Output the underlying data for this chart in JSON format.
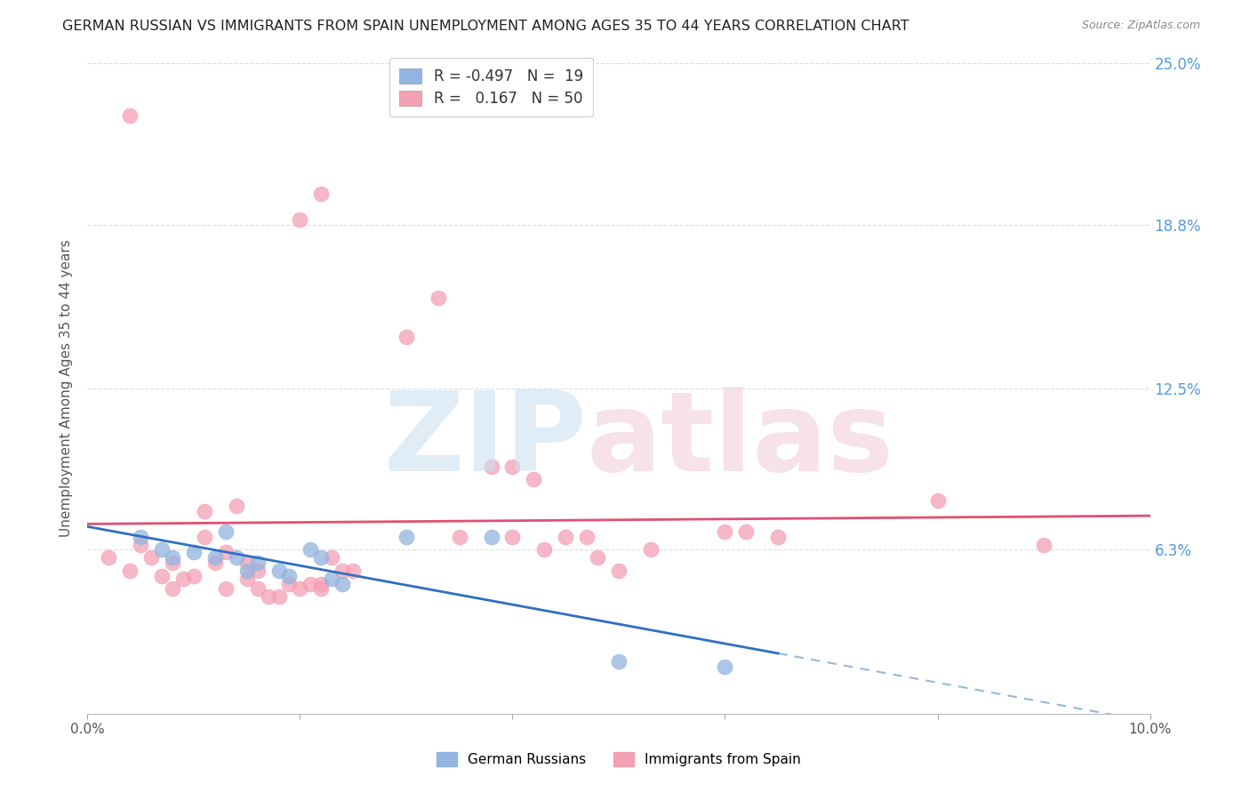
{
  "title": "GERMAN RUSSIAN VS IMMIGRANTS FROM SPAIN UNEMPLOYMENT AMONG AGES 35 TO 44 YEARS CORRELATION CHART",
  "source": "Source: ZipAtlas.com",
  "ylabel": "Unemployment Among Ages 35 to 44 years",
  "xlim": [
    0,
    0.1
  ],
  "ylim": [
    0,
    0.25
  ],
  "yticks": [
    0.063,
    0.125,
    0.188,
    0.25
  ],
  "ytick_labels": [
    "6.3%",
    "12.5%",
    "18.8%",
    "25.0%"
  ],
  "blue_color": "#92b4e0",
  "pink_color": "#f4a0b5",
  "blue_line_color": "#3070c0",
  "pink_line_color": "#e05070",
  "blue_scatter": [
    [
      0.005,
      0.068
    ],
    [
      0.007,
      0.063
    ],
    [
      0.008,
      0.06
    ],
    [
      0.01,
      0.062
    ],
    [
      0.012,
      0.06
    ],
    [
      0.013,
      0.07
    ],
    [
      0.014,
      0.06
    ],
    [
      0.015,
      0.055
    ],
    [
      0.016,
      0.058
    ],
    [
      0.018,
      0.055
    ],
    [
      0.019,
      0.053
    ],
    [
      0.021,
      0.063
    ],
    [
      0.022,
      0.06
    ],
    [
      0.023,
      0.052
    ],
    [
      0.024,
      0.05
    ],
    [
      0.03,
      0.068
    ],
    [
      0.038,
      0.068
    ],
    [
      0.05,
      0.02
    ],
    [
      0.06,
      0.018
    ]
  ],
  "pink_scatter": [
    [
      0.002,
      0.06
    ],
    [
      0.004,
      0.055
    ],
    [
      0.005,
      0.065
    ],
    [
      0.006,
      0.06
    ],
    [
      0.007,
      0.053
    ],
    [
      0.008,
      0.048
    ],
    [
      0.008,
      0.058
    ],
    [
      0.009,
      0.052
    ],
    [
      0.01,
      0.053
    ],
    [
      0.011,
      0.068
    ],
    [
      0.011,
      0.078
    ],
    [
      0.012,
      0.058
    ],
    [
      0.013,
      0.048
    ],
    [
      0.013,
      0.062
    ],
    [
      0.014,
      0.08
    ],
    [
      0.015,
      0.058
    ],
    [
      0.015,
      0.052
    ],
    [
      0.016,
      0.055
    ],
    [
      0.016,
      0.048
    ],
    [
      0.017,
      0.045
    ],
    [
      0.018,
      0.045
    ],
    [
      0.019,
      0.05
    ],
    [
      0.02,
      0.048
    ],
    [
      0.021,
      0.05
    ],
    [
      0.022,
      0.05
    ],
    [
      0.022,
      0.048
    ],
    [
      0.023,
      0.06
    ],
    [
      0.024,
      0.055
    ],
    [
      0.025,
      0.055
    ],
    [
      0.004,
      0.23
    ],
    [
      0.03,
      0.145
    ],
    [
      0.033,
      0.16
    ],
    [
      0.035,
      0.068
    ],
    [
      0.038,
      0.095
    ],
    [
      0.04,
      0.095
    ],
    [
      0.04,
      0.068
    ],
    [
      0.042,
      0.09
    ],
    [
      0.043,
      0.063
    ],
    [
      0.045,
      0.068
    ],
    [
      0.047,
      0.068
    ],
    [
      0.048,
      0.06
    ],
    [
      0.05,
      0.055
    ],
    [
      0.053,
      0.063
    ],
    [
      0.06,
      0.07
    ],
    [
      0.062,
      0.07
    ],
    [
      0.065,
      0.068
    ],
    [
      0.08,
      0.082
    ],
    [
      0.09,
      0.065
    ],
    [
      0.02,
      0.19
    ],
    [
      0.022,
      0.2
    ]
  ],
  "background_color": "#ffffff",
  "grid_color": "#dddddd",
  "watermark_zip_color": "#cce0f0",
  "watermark_atlas_color": "#f0d0d8"
}
